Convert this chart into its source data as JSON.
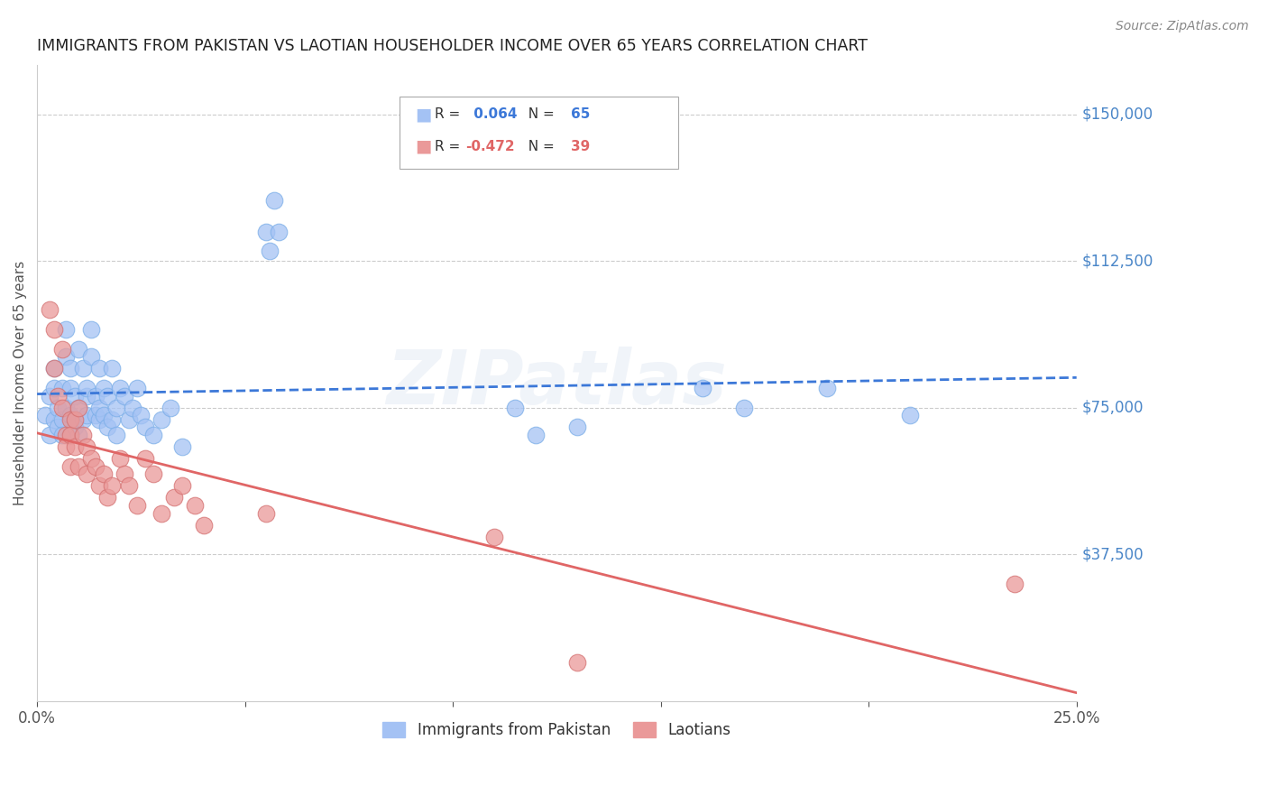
{
  "title": "IMMIGRANTS FROM PAKISTAN VS LAOTIAN HOUSEHOLDER INCOME OVER 65 YEARS CORRELATION CHART",
  "source": "Source: ZipAtlas.com",
  "ylabel": "Householder Income Over 65 years",
  "ytick_labels": [
    "$150,000",
    "$112,500",
    "$75,000",
    "$37,500"
  ],
  "ytick_values": [
    150000,
    112500,
    75000,
    37500
  ],
  "ylim": [
    0,
    162500
  ],
  "xlim": [
    0,
    0.25
  ],
  "legend1_R": "0.064",
  "legend1_N": "65",
  "legend2_R": "-0.472",
  "legend2_N": "39",
  "blue_color": "#a4c2f4",
  "pink_color": "#ea9999",
  "blue_line_color": "#3c78d8",
  "pink_line_color": "#e06666",
  "title_color": "#333333",
  "ytick_color": "#4a86c8",
  "watermark": "ZIPatlas",
  "pakistan_x": [
    0.002,
    0.003,
    0.003,
    0.004,
    0.004,
    0.004,
    0.005,
    0.005,
    0.006,
    0.006,
    0.006,
    0.007,
    0.007,
    0.007,
    0.008,
    0.008,
    0.008,
    0.009,
    0.009,
    0.009,
    0.01,
    0.01,
    0.01,
    0.011,
    0.011,
    0.012,
    0.012,
    0.012,
    0.013,
    0.013,
    0.014,
    0.014,
    0.015,
    0.015,
    0.015,
    0.016,
    0.016,
    0.017,
    0.017,
    0.018,
    0.018,
    0.019,
    0.019,
    0.02,
    0.021,
    0.022,
    0.023,
    0.024,
    0.025,
    0.026,
    0.028,
    0.03,
    0.032,
    0.035,
    0.055,
    0.056,
    0.057,
    0.058,
    0.115,
    0.12,
    0.13,
    0.16,
    0.17,
    0.19,
    0.21
  ],
  "pakistan_y": [
    73000,
    68000,
    78000,
    72000,
    80000,
    85000,
    75000,
    70000,
    72000,
    80000,
    68000,
    88000,
    75000,
    95000,
    73000,
    80000,
    85000,
    70000,
    78000,
    72000,
    90000,
    68000,
    75000,
    85000,
    72000,
    78000,
    73000,
    80000,
    95000,
    88000,
    78000,
    73000,
    72000,
    85000,
    75000,
    80000,
    73000,
    78000,
    70000,
    85000,
    72000,
    75000,
    68000,
    80000,
    78000,
    72000,
    75000,
    80000,
    73000,
    70000,
    68000,
    72000,
    75000,
    65000,
    120000,
    115000,
    128000,
    120000,
    75000,
    68000,
    70000,
    80000,
    75000,
    80000,
    73000
  ],
  "laotian_x": [
    0.003,
    0.004,
    0.004,
    0.005,
    0.006,
    0.006,
    0.007,
    0.007,
    0.008,
    0.008,
    0.008,
    0.009,
    0.009,
    0.01,
    0.01,
    0.011,
    0.012,
    0.012,
    0.013,
    0.014,
    0.015,
    0.016,
    0.017,
    0.018,
    0.02,
    0.021,
    0.022,
    0.024,
    0.026,
    0.028,
    0.03,
    0.033,
    0.035,
    0.038,
    0.04,
    0.055,
    0.11,
    0.13,
    0.235
  ],
  "laotian_y": [
    100000,
    95000,
    85000,
    78000,
    90000,
    75000,
    68000,
    65000,
    72000,
    68000,
    60000,
    72000,
    65000,
    75000,
    60000,
    68000,
    65000,
    58000,
    62000,
    60000,
    55000,
    58000,
    52000,
    55000,
    62000,
    58000,
    55000,
    50000,
    62000,
    58000,
    48000,
    52000,
    55000,
    50000,
    45000,
    48000,
    42000,
    10000,
    30000
  ]
}
